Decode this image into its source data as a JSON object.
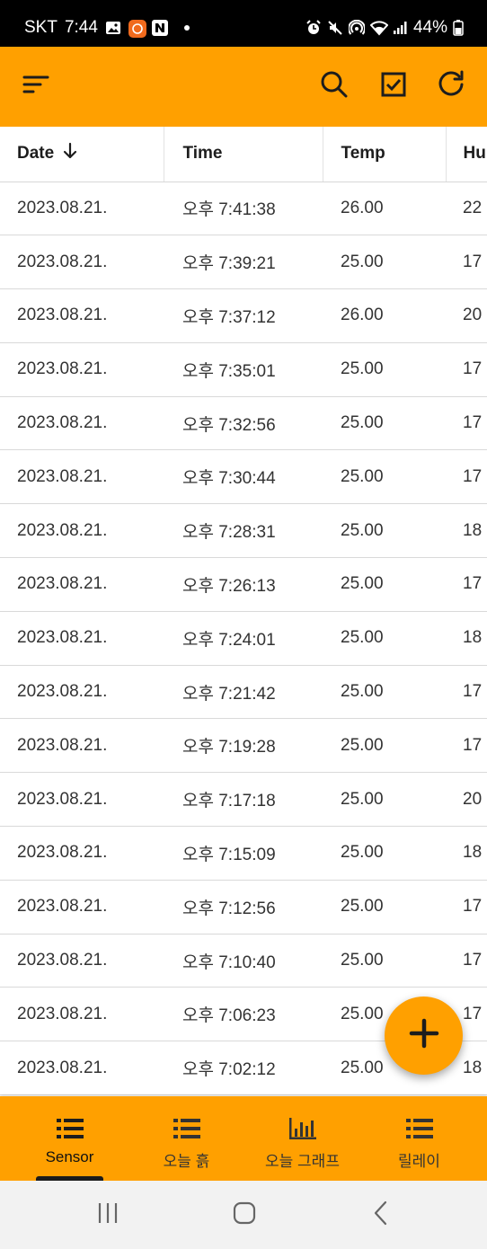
{
  "status_bar": {
    "carrier": "SKT",
    "time": "7:44",
    "battery": "44%"
  },
  "app_bar": {
    "icons": [
      "sort-menu-icon",
      "search-icon",
      "checkbox-icon",
      "refresh-icon"
    ],
    "accent_color": "#ffa000"
  },
  "table": {
    "columns": [
      "Date",
      "Time",
      "Temp",
      "Hu"
    ],
    "sort_column": "Date",
    "sort_direction": "descending",
    "rows": [
      [
        "2023.08.21.",
        "오후 7:41:38",
        "26.00",
        "22"
      ],
      [
        "2023.08.21.",
        "오후 7:39:21",
        "25.00",
        "17"
      ],
      [
        "2023.08.21.",
        "오후 7:37:12",
        "26.00",
        "20"
      ],
      [
        "2023.08.21.",
        "오후 7:35:01",
        "25.00",
        "17"
      ],
      [
        "2023.08.21.",
        "오후 7:32:56",
        "25.00",
        "17"
      ],
      [
        "2023.08.21.",
        "오후 7:30:44",
        "25.00",
        "17"
      ],
      [
        "2023.08.21.",
        "오후 7:28:31",
        "25.00",
        "18"
      ],
      [
        "2023.08.21.",
        "오후 7:26:13",
        "25.00",
        "17"
      ],
      [
        "2023.08.21.",
        "오후 7:24:01",
        "25.00",
        "18"
      ],
      [
        "2023.08.21.",
        "오후 7:21:42",
        "25.00",
        "17"
      ],
      [
        "2023.08.21.",
        "오후 7:19:28",
        "25.00",
        "17"
      ],
      [
        "2023.08.21.",
        "오후 7:17:18",
        "25.00",
        "20"
      ],
      [
        "2023.08.21.",
        "오후 7:15:09",
        "25.00",
        "18"
      ],
      [
        "2023.08.21.",
        "오후 7:12:56",
        "25.00",
        "17"
      ],
      [
        "2023.08.21.",
        "오후 7:10:40",
        "25.00",
        "17"
      ],
      [
        "2023.08.21.",
        "오후 7:06:23",
        "25.00",
        "17"
      ],
      [
        "2023.08.21.",
        "오후 7:02:12",
        "25.00",
        "18"
      ]
    ]
  },
  "fab": {
    "icon": "plus-icon"
  },
  "bottom_nav": {
    "items": [
      {
        "label": "Sensor",
        "icon": "list-icon",
        "active": true
      },
      {
        "label": "오늘 흙",
        "icon": "list-icon",
        "active": false
      },
      {
        "label": "오늘 그래프",
        "icon": "bar-chart-icon",
        "active": false
      },
      {
        "label": "릴레이",
        "icon": "list-icon",
        "active": false
      }
    ]
  },
  "system_nav": {
    "buttons": [
      "recent-apps-icon",
      "home-icon",
      "back-icon"
    ]
  }
}
